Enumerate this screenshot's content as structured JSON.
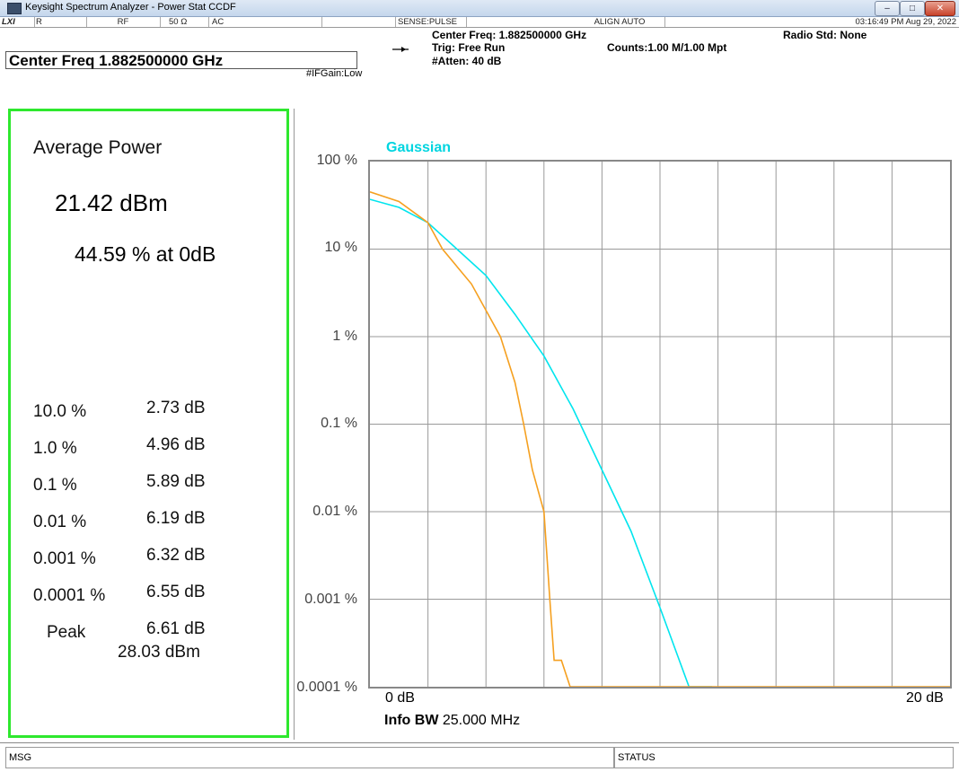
{
  "window": {
    "title": "Keysight Spectrum Analyzer - Power Stat CCDF",
    "buttons": [
      "–",
      "□",
      "✕"
    ]
  },
  "statusbar": {
    "lxi": "LXI",
    "input_mode": "R",
    "rf": "RF",
    "impedance": "50 Ω",
    "coupling": "AC",
    "sense": "SENSE:PULSE",
    "align": "ALIGN AUTO",
    "datetime": "03:16:49 PM Aug 29, 2022"
  },
  "info": {
    "center_freq_box": "Center Freq 1.882500000 GHz",
    "center_freq": "Center Freq: 1.882500000 GHz",
    "trig": "Trig: Free Run",
    "atten": "#Atten: 40 dB",
    "counts": "Counts:1.00 M/1.00 Mpt",
    "radio_std": "Radio Std: None",
    "ifgain": "#IFGain:Low",
    "arrow_icon": "trigger-arrow-icon"
  },
  "results": {
    "avg_label": "Average Power",
    "avg_power": "21.42 dBm",
    "avg_pct": "44.59 % at 0dB",
    "rows": [
      {
        "pct": "10.0 %",
        "db": "2.73 dB"
      },
      {
        "pct": "1.0 %",
        "db": "4.96 dB"
      },
      {
        "pct": "0.1 %",
        "db": "5.89 dB"
      },
      {
        "pct": "0.01 %",
        "db": "6.19 dB"
      },
      {
        "pct": "0.001 %",
        "db": "6.32 dB"
      },
      {
        "pct": "0.0001 %",
        "db": "6.55 dB"
      }
    ],
    "peak_label": "Peak",
    "peak_db": "6.61 dB",
    "peak_dbm": "28.03 dBm"
  },
  "chart": {
    "gaussian_label": "Gaussian",
    "y_ticks": [
      "100 %",
      "10 %",
      "1 %",
      "0.1 %",
      "0.01 %",
      "0.001 %",
      "0.0001 %"
    ],
    "x_start": "0 dB",
    "x_end": "20 dB",
    "infobw_label": "Info BW",
    "infobw_value": "25.000 MHz"
  },
  "chart_data": {
    "type": "line",
    "title": "",
    "xlabel": "",
    "ylabel": "",
    "xlim": [
      0,
      20
    ],
    "ylim_percent": [
      0.0001,
      100
    ],
    "y_scale": "log",
    "grid": true,
    "series": [
      {
        "name": "Gaussian",
        "color": "#00e5ee",
        "x": [
          0,
          1,
          2,
          3,
          4,
          5,
          6,
          7,
          8,
          9,
          10,
          11,
          11.8
        ],
        "y": [
          37,
          30,
          20,
          10,
          5,
          1.8,
          0.6,
          0.15,
          0.03,
          0.006,
          0.0008,
          0.0001,
          0.0001
        ]
      },
      {
        "name": "",
        "color": "#f5a020",
        "x": [
          0,
          1,
          2,
          2.5,
          3.5,
          4.5,
          5,
          5.3,
          5.6,
          6.0,
          6.2,
          6.35,
          6.6,
          6.9,
          20
        ],
        "y": [
          45,
          35,
          20,
          10,
          4,
          1,
          0.3,
          0.1,
          0.03,
          0.01,
          0.001,
          0.0002,
          0.0002,
          0.0001,
          0.0001
        ]
      }
    ]
  },
  "msgbar": {
    "msg": "MSG",
    "status": "STATUS"
  }
}
